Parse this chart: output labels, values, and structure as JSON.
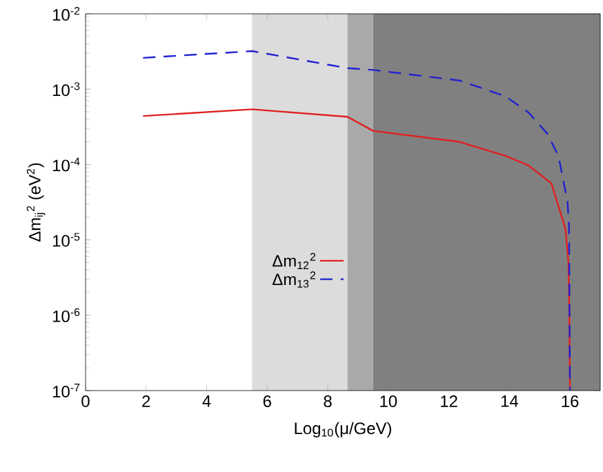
{
  "chart_data": {
    "type": "line",
    "xlabel": "Log$_{10}$(μ/GeV)",
    "ylabel": "Δm$_{ij}$$^{2}$ (eV$^{2}$)",
    "log": "y",
    "xlim": [
      0,
      17
    ],
    "xticks": [
      0,
      2,
      4,
      6,
      8,
      10,
      12,
      14,
      16
    ],
    "ylim": [
      1e-07,
      0.01
    ],
    "yticks": [
      {
        "value": 1e-07,
        "label": "10$^{-7}$"
      },
      {
        "value": 1e-06,
        "label": "10$^{-6}$"
      },
      {
        "value": 1e-05,
        "label": "10$^{-5}$"
      },
      {
        "value": 0.0001,
        "label": "10$^{-4}$"
      },
      {
        "value": 0.001,
        "label": "10$^{-3}$"
      },
      {
        "value": 0.01,
        "label": "10$^{-2}$"
      }
    ],
    "grid": false,
    "legend": "center",
    "marker": "none",
    "bands": [
      {
        "axis": "x",
        "from": 5.5,
        "to": 8.65,
        "color": "#dcdcdc"
      },
      {
        "axis": "x",
        "from": 8.65,
        "to": 9.5,
        "color": "#a9a9a9"
      },
      {
        "axis": "x",
        "from": 9.5,
        "to": 17,
        "color": "#808080"
      }
    ],
    "series": [
      {
        "name": "Δm$_{12}$$^{2}$",
        "color": "#e02020",
        "line_style": "solid",
        "x": [
          1.9,
          5.5,
          8.65,
          9.5,
          12.35,
          13.87,
          14.62,
          15.39,
          15.85,
          15.95,
          15.98,
          16
        ],
        "values": [
          0.00044,
          0.00054,
          0.00043,
          0.00028,
          0.0002,
          0.00013,
          9.8e-05,
          5.6e-05,
          1.4e-05,
          5e-06,
          1e-06,
          1e-07
        ]
      },
      {
        "name": "Δm$_{13}$$^{2}$",
        "color": "#2020d0",
        "line_style": "dashed",
        "x": [
          1.9,
          5.5,
          8.65,
          9.5,
          12.36,
          13.88,
          14.63,
          15.24,
          15.62,
          15.92,
          15.97,
          16
        ],
        "values": [
          0.0026,
          0.0032,
          0.0019,
          0.0018,
          0.0013,
          0.0008,
          0.00049,
          0.00026,
          0.00013,
          3.2e-05,
          1.4e-05,
          1e-07
        ]
      }
    ]
  }
}
